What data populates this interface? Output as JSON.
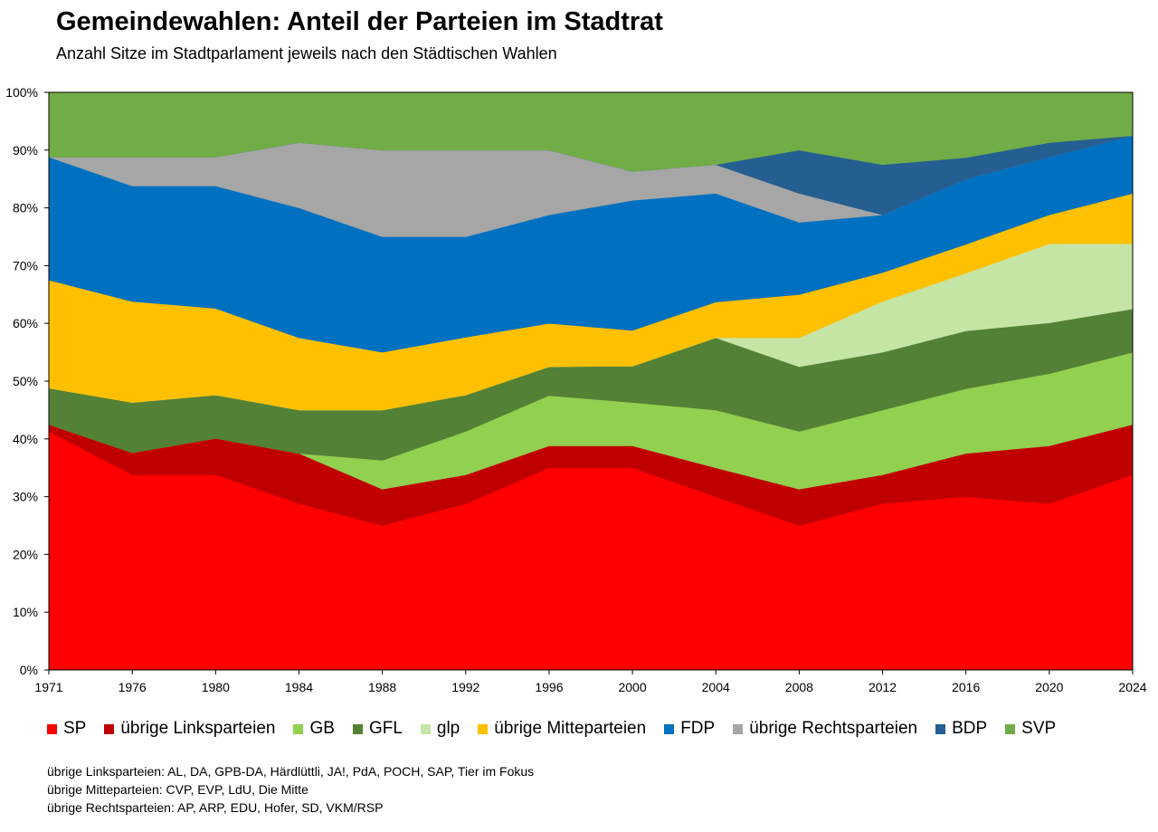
{
  "title": "Gemeindewahlen: Anteil der Parteien im Stadtrat",
  "subtitle": "Anzahl Sitze im Stadtparlament jeweils nach den Städtischen Wahlen",
  "chart_data": {
    "type": "area",
    "stacked": true,
    "x": [
      "1971",
      "1976",
      "1980",
      "1984",
      "1988",
      "1992",
      "1996",
      "2000",
      "2004",
      "2008",
      "2012",
      "2016",
      "2020",
      "2024"
    ],
    "yticks": [
      "0%",
      "10%",
      "20%",
      "30%",
      "40%",
      "50%",
      "60%",
      "70%",
      "80%",
      "90%",
      "100%"
    ],
    "ylim": [
      0,
      100
    ],
    "grid": false,
    "legend_position": "bottom",
    "series": [
      {
        "name": "SP",
        "color": "#FF0000",
        "values": [
          41.3,
          33.8,
          33.8,
          28.8,
          25.0,
          28.8,
          35.0,
          35.0,
          30.0,
          25.0,
          28.8,
          30.0,
          28.8,
          33.8
        ]
      },
      {
        "name": "übrige Linksparteien",
        "color": "#C00000",
        "values": [
          1.2,
          3.8,
          6.3,
          8.7,
          6.3,
          5.0,
          3.8,
          3.8,
          5.0,
          6.3,
          5.0,
          7.5,
          10.0,
          8.7
        ]
      },
      {
        "name": "GB",
        "color": "#92D050",
        "values": [
          0,
          0,
          0,
          0,
          5.0,
          7.5,
          8.7,
          7.5,
          10.0,
          10.0,
          11.2,
          11.2,
          12.5,
          12.5
        ]
      },
      {
        "name": "GFL",
        "color": "#538135",
        "values": [
          6.3,
          8.7,
          7.5,
          7.5,
          8.7,
          6.3,
          5.0,
          6.3,
          12.5,
          11.2,
          10.0,
          10.0,
          8.8,
          7.5
        ]
      },
      {
        "name": "glp",
        "color": "#C5E5A5",
        "values": [
          0,
          0,
          0,
          0,
          0,
          0,
          0,
          0,
          0,
          5.0,
          8.8,
          10.0,
          13.7,
          11.3
        ]
      },
      {
        "name": "übrige Mitteparteien",
        "color": "#FFC000",
        "values": [
          18.7,
          17.5,
          15.0,
          12.5,
          10.0,
          10.0,
          7.5,
          6.2,
          6.2,
          7.5,
          5.0,
          5.0,
          5.0,
          8.7
        ]
      },
      {
        "name": "FDP",
        "color": "#0070C0",
        "values": [
          21.3,
          20.0,
          21.2,
          22.5,
          20.0,
          17.4,
          18.8,
          22.5,
          18.8,
          12.5,
          10.0,
          11.3,
          10.0,
          10.0
        ]
      },
      {
        "name": "übrige Rechtsparteien",
        "color": "#A6A6A6",
        "values": [
          0,
          5.0,
          5.0,
          11.3,
          15.0,
          15.0,
          11.2,
          5.0,
          5.0,
          5.0,
          0,
          0,
          0,
          0
        ]
      },
      {
        "name": "BDP",
        "color": "#255E91",
        "values": [
          0,
          0,
          0,
          0,
          0,
          0,
          0,
          0,
          0,
          7.5,
          8.7,
          3.7,
          2.5,
          0
        ]
      },
      {
        "name": "SVP",
        "color": "#70AD47",
        "values": [
          11.2,
          11.2,
          11.2,
          8.7,
          10.0,
          10.0,
          10.0,
          13.7,
          12.5,
          10.0,
          12.5,
          11.3,
          8.7,
          7.5
        ]
      }
    ]
  },
  "notes": [
    "übrige Linksparteien: AL, DA, GPB-DA, Härdlüttli, JA!, PdA, POCH, SAP, Tier im Fokus",
    "übrige Mitteparteien: CVP, EVP, LdU, Die Mitte",
    "übrige Rechtsparteien: AP, ARP, EDU, Hofer, SD, VKM/RSP"
  ]
}
